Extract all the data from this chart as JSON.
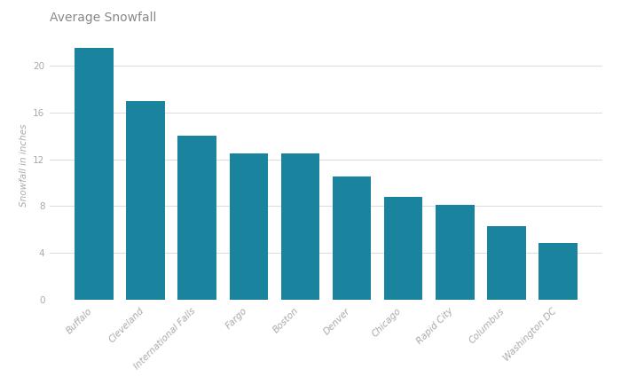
{
  "categories": [
    "Buffalo",
    "Cleveland",
    "International Falls",
    "Fargo",
    "Boston",
    "Denver",
    "Chicago",
    "Rapid City",
    "Columbus",
    "Washington DC"
  ],
  "values": [
    21.5,
    17.0,
    14.0,
    12.5,
    12.5,
    10.5,
    8.8,
    8.1,
    6.3,
    4.8
  ],
  "bar_color": "#1a849e",
  "title": "Average Snowfall",
  "ylabel": "Snowfall in inches",
  "ylim": [
    0,
    23
  ],
  "yticks": [
    0,
    4,
    8,
    12,
    16,
    20
  ],
  "background_color": "#ffffff",
  "title_fontsize": 10,
  "ylabel_fontsize": 7.5,
  "tick_label_fontsize": 7.5,
  "xtick_label_fontsize": 7.5,
  "grid_color": "#dddddd",
  "bar_width": 0.75,
  "title_color": "#888888",
  "tick_color": "#aaaaaa",
  "ylabel_color": "#aaaaaa"
}
